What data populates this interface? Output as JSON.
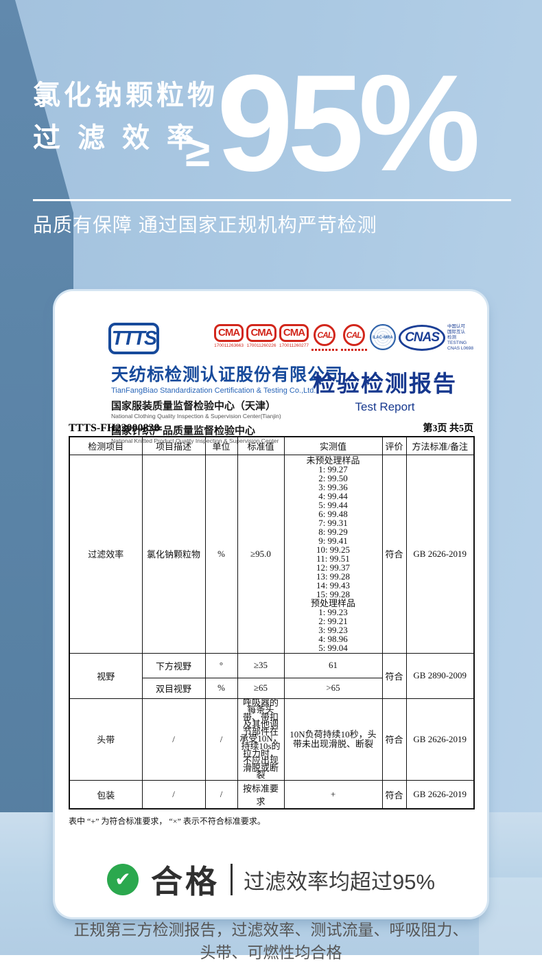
{
  "colors": {
    "accent_blue": "#174a9b",
    "navy": "#16388e",
    "red": "#d2261b",
    "green": "#2ba84e",
    "band_blue": "#5d87ab",
    "bg_blue": "#abc9e3"
  },
  "hero": {
    "title_line1": "氯化钠颗粒物",
    "title_line2": "过滤效率",
    "ge_symbol": "≥",
    "value": "95%",
    "subtitle": "品质有保障 通过国家正规机构严苛检测"
  },
  "lab": {
    "logo": "TTTS",
    "company_cn": "天纺标检测认证股份有限公司",
    "company_en": "TianFangBiao Standardization Certification & Testing Co.,Ltd.",
    "center1_cn": "国家服装质量监督检验中心（天津）",
    "center1_en": "National Clothing Quality Inspection & Supervision Center(Tianjin)",
    "center2_cn": "国家针织产品质量监督检验中心",
    "center2_en": "National Knitted Product Quality Inspection & Supervision Center",
    "badges": {
      "cma": [
        {
          "mark": "CMA",
          "number": "170011263663"
        },
        {
          "mark": "CMA",
          "number": "170011260226"
        },
        {
          "mark": "CMA",
          "number": "170011260277"
        }
      ],
      "cal": [
        {
          "mark": "CAL"
        },
        {
          "mark": "CAL"
        }
      ],
      "ilac": "ILAC-MRA",
      "cnas_mark": "CNAS",
      "cnas_lines": [
        "中国认可",
        "国际互认",
        "检测",
        "TESTING",
        "CNAS L0698"
      ]
    }
  },
  "report": {
    "title_cn": "检验检测报告",
    "title_en": "Test Report",
    "number": "TTTS-FH22000838",
    "page": "第3页 共5页"
  },
  "table": {
    "headers": [
      "检测项目",
      "项目描述",
      "单位",
      "标准值",
      "实测值",
      "评价",
      "方法标准/备注"
    ],
    "filter_row": {
      "item": "过滤效率",
      "desc": "氯化钠颗粒物",
      "unit": "%",
      "standard": "≥95.0",
      "measured_title1": "未预处理样品",
      "measured_untreated": [
        "1: 99.27",
        "2: 99.50",
        "3: 99.36",
        "4: 99.44",
        "5: 99.44",
        "6: 99.48",
        "7: 99.31",
        "8: 99.29",
        "9: 99.41",
        "10: 99.25",
        "11: 99.51",
        "12: 99.37",
        "13: 99.28",
        "14: 99.43",
        "15: 99.28"
      ],
      "measured_title2": "预处理样品",
      "measured_treated": [
        "1: 99.23",
        "2: 99.21",
        "3: 99.23",
        "4: 98.96",
        "5: 99.04"
      ],
      "eval": "符合",
      "method": "GB 2626-2019"
    },
    "vision_row": {
      "item": "视野",
      "sub1": {
        "desc": "下方视野",
        "unit": "°",
        "standard": "≥35",
        "measured": "61"
      },
      "sub2": {
        "desc": "双目视野",
        "unit": "%",
        "standard": "≥65",
        "measured": ">65"
      },
      "eval": "符合",
      "method": "GB 2890-2009"
    },
    "headband_row": {
      "item": "头带",
      "desc": "/",
      "unit": "/",
      "standard": "呼吸器的每条头带、带扣及其他调节部件在承受10N，持续10s的拉力时，不应出现滑脱或断裂",
      "measured": "10N负荷持续10秒，头带未出现滑脱、断裂",
      "eval": "符合",
      "method": "GB 2626-2019"
    },
    "package_row": {
      "item": "包装",
      "desc": "/",
      "unit": "/",
      "standard": "按标准要求",
      "measured": "+",
      "eval": "符合",
      "method": "GB 2626-2019"
    },
    "footnote": "表中 “+” 为符合标准要求， “×” 表示不符合标准要求。"
  },
  "verdict": {
    "check_glyph": "✔",
    "label": "合格",
    "detail": "过滤效率均超过95%"
  },
  "bottom_note_line1": "正规第三方检测报告，过滤效率、测试流量、呼吸阻力、",
  "bottom_note_line2": "头带、可燃性均合格"
}
